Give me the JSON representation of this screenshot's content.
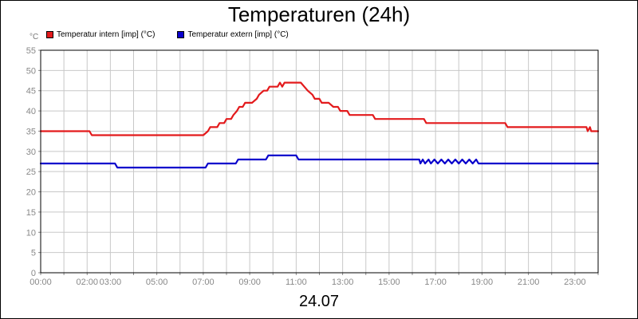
{
  "chart_data": {
    "type": "line",
    "title": "Temperaturen (24h)",
    "date_label": "24.07",
    "y_unit": "°C",
    "ylim": [
      0,
      55
    ],
    "y_ticks": [
      "0",
      "5",
      "10",
      "15",
      "20",
      "25",
      "30",
      "35",
      "40",
      "45",
      "50",
      "55"
    ],
    "xlim": [
      0,
      24
    ],
    "x_ticks": [
      {
        "h": 0,
        "label": "00:00"
      },
      {
        "h": 2,
        "label": "02:00"
      },
      {
        "h": 3,
        "label": "03:00"
      },
      {
        "h": 5,
        "label": "05:00"
      },
      {
        "h": 7,
        "label": "07:00"
      },
      {
        "h": 9,
        "label": "09:00"
      },
      {
        "h": 11,
        "label": "11:00"
      },
      {
        "h": 13,
        "label": "13:00"
      },
      {
        "h": 15,
        "label": "15:00"
      },
      {
        "h": 17,
        "label": "17:00"
      },
      {
        "h": 19,
        "label": "19:00"
      },
      {
        "h": 21,
        "label": "21:00"
      },
      {
        "h": 23,
        "label": "23:00"
      }
    ],
    "grid": true,
    "legend_position": "top-left",
    "series": [
      {
        "name": "Temperatur intern [imp] (°C)",
        "color": "#e31a1c",
        "points": [
          [
            0.0,
            35
          ],
          [
            2.1,
            35
          ],
          [
            2.2,
            34
          ],
          [
            7.0,
            34
          ],
          [
            7.2,
            35
          ],
          [
            7.3,
            36
          ],
          [
            7.6,
            36
          ],
          [
            7.7,
            37
          ],
          [
            7.9,
            37
          ],
          [
            8.0,
            38
          ],
          [
            8.2,
            38
          ],
          [
            8.3,
            39
          ],
          [
            8.45,
            40
          ],
          [
            8.55,
            41
          ],
          [
            8.7,
            41
          ],
          [
            8.8,
            42
          ],
          [
            9.1,
            42
          ],
          [
            9.3,
            43
          ],
          [
            9.4,
            44
          ],
          [
            9.6,
            45
          ],
          [
            9.75,
            45
          ],
          [
            9.85,
            46
          ],
          [
            10.2,
            46
          ],
          [
            10.3,
            47
          ],
          [
            10.4,
            46
          ],
          [
            10.5,
            47
          ],
          [
            11.2,
            47
          ],
          [
            11.5,
            45
          ],
          [
            11.7,
            44
          ],
          [
            11.8,
            43
          ],
          [
            12.0,
            43
          ],
          [
            12.1,
            42
          ],
          [
            12.4,
            42
          ],
          [
            12.6,
            41
          ],
          [
            12.8,
            41
          ],
          [
            12.9,
            40
          ],
          [
            13.2,
            40
          ],
          [
            13.3,
            39
          ],
          [
            14.3,
            39
          ],
          [
            14.4,
            38
          ],
          [
            16.5,
            38
          ],
          [
            16.6,
            37
          ],
          [
            20.0,
            37
          ],
          [
            20.1,
            36
          ],
          [
            23.5,
            36
          ],
          [
            23.55,
            35
          ],
          [
            23.65,
            36
          ],
          [
            23.7,
            35
          ],
          [
            24.0,
            35
          ]
        ]
      },
      {
        "name": "Temperatur extern [imp] (°C)",
        "color": "#0a00cc",
        "points": [
          [
            0.0,
            27
          ],
          [
            3.2,
            27
          ],
          [
            3.3,
            26
          ],
          [
            7.1,
            26
          ],
          [
            7.2,
            27
          ],
          [
            8.4,
            27
          ],
          [
            8.5,
            28
          ],
          [
            9.7,
            28
          ],
          [
            9.8,
            29
          ],
          [
            11.0,
            29
          ],
          [
            11.1,
            28
          ],
          [
            16.3,
            28
          ],
          [
            16.35,
            27
          ],
          [
            16.45,
            28
          ],
          [
            16.55,
            27
          ],
          [
            16.7,
            28
          ],
          [
            16.8,
            27
          ],
          [
            16.95,
            28
          ],
          [
            17.1,
            27
          ],
          [
            17.25,
            28
          ],
          [
            17.4,
            27
          ],
          [
            17.55,
            28
          ],
          [
            17.7,
            27
          ],
          [
            17.85,
            28
          ],
          [
            18.0,
            27
          ],
          [
            18.15,
            28
          ],
          [
            18.3,
            27
          ],
          [
            18.45,
            28
          ],
          [
            18.6,
            27
          ],
          [
            18.75,
            28
          ],
          [
            18.85,
            27
          ],
          [
            24.0,
            27
          ]
        ]
      }
    ]
  }
}
